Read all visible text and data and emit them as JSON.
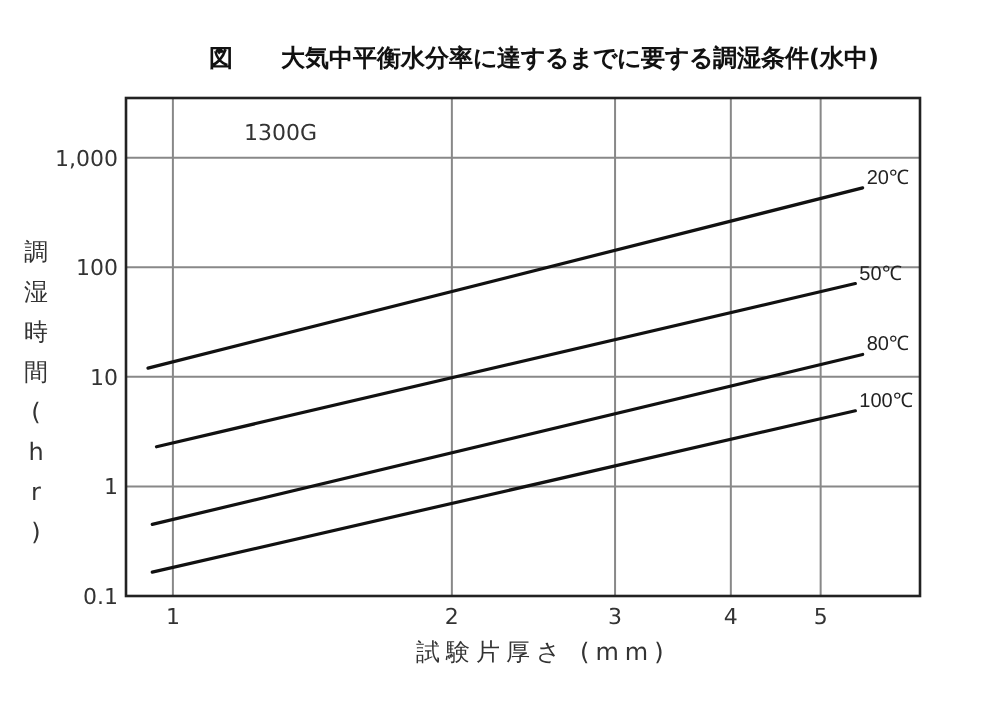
{
  "chart_data": {
    "type": "line",
    "title": "図　　大気中平衡水分率に達するまでに要する調湿条件(水中)",
    "xlabel": "試験片厚さ (mm)",
    "ylabel": "調湿時間(hr)",
    "annotations": [
      "1300G"
    ],
    "log": "xy",
    "grid": true,
    "marker": "none",
    "line_style": "solid",
    "xlim": [
      0.89,
      6.4
    ],
    "xticks": [
      1,
      2,
      3,
      4,
      5
    ],
    "ylim": [
      0.1,
      3500
    ],
    "yticks": [
      0.1,
      1,
      10,
      100,
      {
        "value": 1000,
        "label": "1,000"
      }
    ],
    "series": [
      {
        "name": "20℃",
        "color": "#111111",
        "x": [
          0.94,
          5.55
        ],
        "values": [
          12,
          530
        ]
      },
      {
        "name": "50℃",
        "color": "#111111",
        "x": [
          0.96,
          5.45
        ],
        "values": [
          2.3,
          71
        ]
      },
      {
        "name": "80℃",
        "color": "#111111",
        "x": [
          0.95,
          5.55
        ],
        "values": [
          0.45,
          16
        ]
      },
      {
        "name": "100℃",
        "color": "#111111",
        "x": [
          0.95,
          5.45
        ],
        "values": [
          0.165,
          4.9
        ]
      }
    ]
  }
}
